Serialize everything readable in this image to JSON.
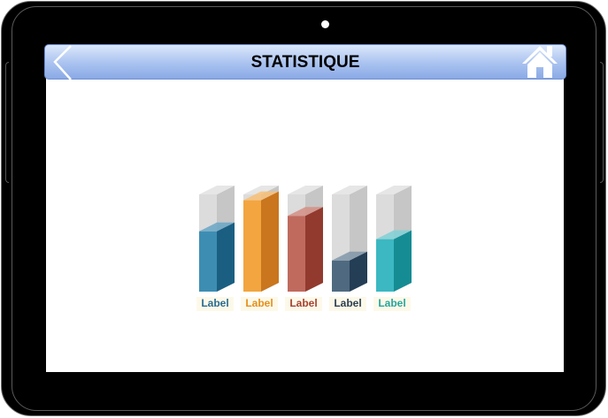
{
  "header": {
    "title": "STATISTIQUE"
  },
  "icons": {
    "back": "back-chevron-icon",
    "home": "home-icon"
  },
  "colors": {
    "title_bar": "#a9c2ef",
    "bezel": "#000000"
  },
  "chart_data": {
    "type": "bar",
    "style": "3d-cylinder-columns",
    "categories": [
      "Label",
      "Label",
      "Label",
      "Label",
      "Label"
    ],
    "values": [
      0.62,
      0.94,
      0.78,
      0.32,
      0.54
    ],
    "ylim": [
      0,
      1
    ],
    "colors": [
      {
        "front": "#3d8db3",
        "side": "#1a5f82",
        "top": "#69a6c4",
        "label": "#2a6c92"
      },
      {
        "front": "#f3a53f",
        "side": "#c9761e",
        "top": "#f7c077",
        "label": "#e5901c"
      },
      {
        "front": "#c06a5e",
        "side": "#923a2e",
        "top": "#d48e84",
        "label": "#a4432f"
      },
      {
        "front": "#4f6a80",
        "side": "#243e55",
        "top": "#8096a8",
        "label": "#2b3f4f"
      },
      {
        "front": "#3bb8c2",
        "side": "#158c94",
        "top": "#7fd0d6",
        "label": "#27a69c"
      }
    ]
  }
}
